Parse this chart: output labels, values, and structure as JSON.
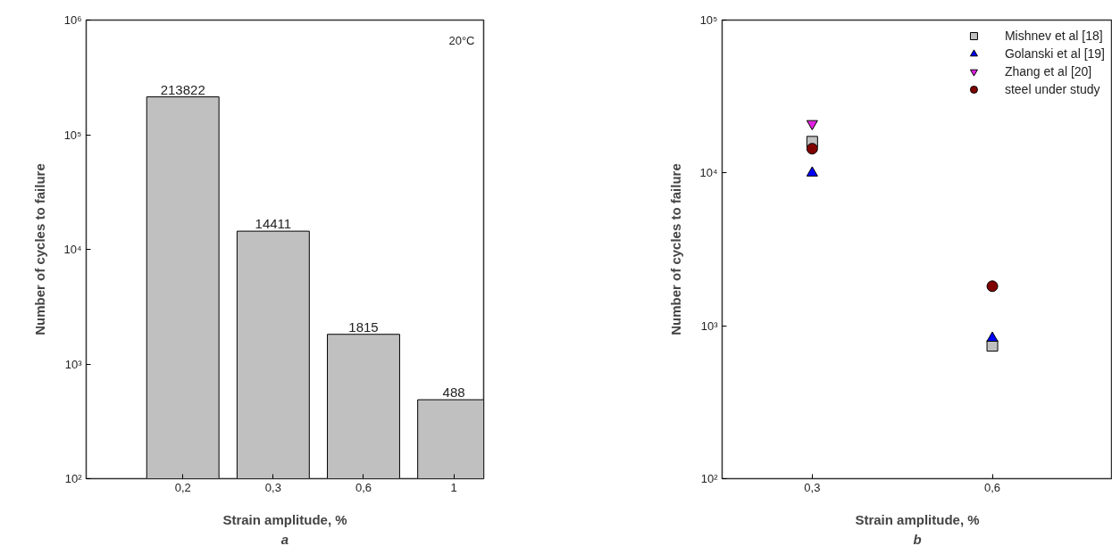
{
  "chart_data": [
    {
      "type": "bar",
      "categories": [
        "0,2",
        "0,3",
        "0,6",
        "1"
      ],
      "values": [
        213822,
        14411,
        1815,
        488
      ],
      "color": "#c0c0c0",
      "data_labels": true,
      "log": true,
      "ylim": [
        100,
        1000000
      ],
      "yticks": [
        {
          "value": 100,
          "label": "10²"
        },
        {
          "value": 1000,
          "label": "10³"
        },
        {
          "value": 10000,
          "label": "10⁴"
        },
        {
          "value": 100000,
          "label": "10⁵"
        },
        {
          "value": 1000000,
          "label": "10⁶"
        }
      ],
      "xlabel": "Strain amplitude, %",
      "ylabel": "Number of cycles to failure",
      "grid": false,
      "annotations": [
        "20°C",
        "a"
      ]
    },
    {
      "type": "scatter",
      "x": [
        0.3,
        0.6
      ],
      "log": true,
      "xlim": [
        0.15,
        0.8
      ],
      "xticks": [
        {
          "value": 0.3,
          "label": "0,3"
        },
        {
          "value": 0.6,
          "label": "0,6"
        }
      ],
      "ylim": [
        100,
        100000
      ],
      "yticks": [
        {
          "value": 100,
          "label": "10²"
        },
        {
          "value": 1000,
          "label": "10³"
        },
        {
          "value": 10000,
          "label": "10⁴"
        },
        {
          "value": 100000,
          "label": "10⁵"
        }
      ],
      "xlabel": "Strain amplitude, %",
      "ylabel": "Number of cycles to failure",
      "grid": false,
      "legend": "top right",
      "series": [
        {
          "name": "Mishnev et al [18]",
          "color": "#c0c0c0",
          "marker": "square",
          "values": [
            16000,
            740
          ]
        },
        {
          "name": "Golanski et al [19]",
          "color": "#0000ff",
          "marker": "triangle",
          "values": [
            10000,
            830
          ]
        },
        {
          "name": "Zhang et al [20]",
          "color": "#e020e0",
          "values": [
            21000,
            null
          ]
        },
        {
          "name": "steel under study",
          "color": "#800000",
          "marker": "circle",
          "values": [
            14411,
            1815
          ]
        }
      ],
      "annotations": [
        "b"
      ]
    }
  ]
}
